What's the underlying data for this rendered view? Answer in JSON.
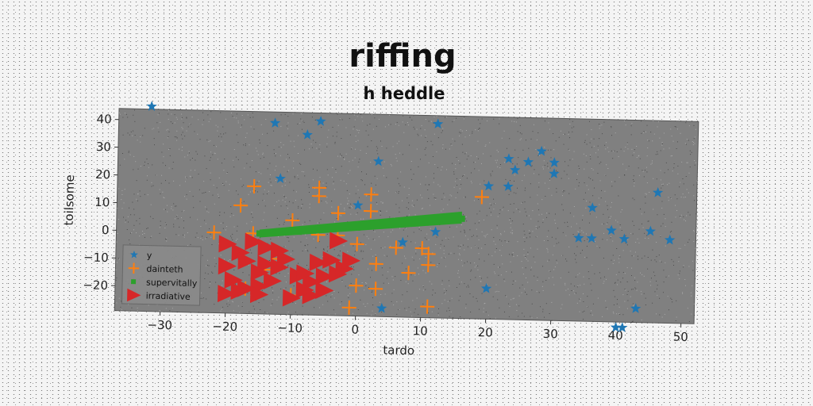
{
  "chart_data": {
    "type": "scatter",
    "title": "riffing",
    "subtitle": "h heddle",
    "xlabel": "tardo",
    "ylabel": "toilsome",
    "xlim": [
      -37,
      52
    ],
    "ylim": [
      -29,
      44
    ],
    "xticks": [
      -30,
      -20,
      -10,
      0,
      10,
      20,
      30,
      40,
      50
    ],
    "yticks": [
      -20,
      -10,
      0,
      10,
      20,
      30,
      40
    ],
    "xtick_labels": [
      "−30",
      "−20",
      "−10",
      "0",
      "10",
      "20",
      "30",
      "40",
      "50"
    ],
    "ytick_labels": [
      "−20",
      "−10",
      "0",
      "10",
      "20",
      "30",
      "40"
    ],
    "grid": false,
    "legend_position": "lower-left",
    "background": "#808080",
    "series": [
      {
        "name": "y",
        "marker": "star",
        "color": "#1f77b4",
        "points": [
          [
            -32,
            45
          ],
          [
            -13,
            40
          ],
          [
            -6,
            41
          ],
          [
            -8,
            36
          ],
          [
            12,
            41
          ],
          [
            3,
            27
          ],
          [
            -12,
            20
          ],
          [
            0,
            11
          ],
          [
            12,
            2
          ],
          [
            7,
            -2
          ],
          [
            20,
            -18
          ],
          [
            4,
            -26
          ],
          [
            20,
            19
          ],
          [
            23,
            29
          ],
          [
            24,
            25
          ],
          [
            26,
            28
          ],
          [
            28,
            32
          ],
          [
            30,
            28
          ],
          [
            30,
            24
          ],
          [
            23,
            19
          ],
          [
            36,
            12
          ],
          [
            46,
            18
          ],
          [
            34,
            1
          ],
          [
            36,
            1
          ],
          [
            39,
            4
          ],
          [
            41,
            1
          ],
          [
            45,
            4
          ],
          [
            48,
            1
          ],
          [
            43,
            -24
          ],
          [
            40,
            -31
          ],
          [
            41,
            -31
          ]
        ]
      },
      {
        "name": "dainteth",
        "marker": "plus",
        "color": "#ff7f0e",
        "points": [
          [
            -16,
            17
          ],
          [
            -18,
            10
          ],
          [
            -6,
            17
          ],
          [
            -6,
            14
          ],
          [
            2,
            15
          ],
          [
            2,
            9
          ],
          [
            -3,
            8
          ],
          [
            -10,
            5
          ],
          [
            -22,
            0
          ],
          [
            -16,
            0
          ],
          [
            -6,
            0
          ],
          [
            0,
            -3
          ],
          [
            -3,
            0
          ],
          [
            6,
            -4
          ],
          [
            10,
            -4
          ],
          [
            11,
            -6
          ],
          [
            3,
            -10
          ],
          [
            8,
            -13
          ],
          [
            11,
            -10
          ],
          [
            -14,
            -13
          ],
          [
            -17,
            -20
          ],
          [
            -10,
            -22
          ],
          [
            0,
            -18
          ],
          [
            3,
            -19
          ],
          [
            -1,
            -26
          ],
          [
            11,
            -25
          ],
          [
            19,
            15
          ],
          [
            -12,
            -9
          ]
        ]
      },
      {
        "name": "supervitally",
        "marker": "square",
        "color": "#2ca02c",
        "band": true,
        "from": [
          -15,
          0
        ],
        "to": [
          16,
          7
        ],
        "points": [
          [
            -15,
            0
          ],
          [
            -12,
            1
          ],
          [
            -9,
            1
          ],
          [
            -6,
            2
          ],
          [
            -3,
            3
          ],
          [
            0,
            3
          ],
          [
            3,
            4
          ],
          [
            6,
            5
          ],
          [
            9,
            5
          ],
          [
            12,
            6
          ],
          [
            16,
            7
          ]
        ]
      },
      {
        "name": "irradiative",
        "marker": "triangle-right",
        "color": "#d62728",
        "points": [
          [
            -20,
            -4
          ],
          [
            -18,
            -7
          ],
          [
            -16,
            -3
          ],
          [
            -14,
            -5
          ],
          [
            -12,
            -6
          ],
          [
            -17,
            -10
          ],
          [
            -14,
            -11
          ],
          [
            -11,
            -9
          ],
          [
            -20,
            -12
          ],
          [
            -19,
            -17
          ],
          [
            -17,
            -20
          ],
          [
            -15,
            -19
          ],
          [
            -13,
            -17
          ],
          [
            -20,
            -22
          ],
          [
            -18,
            -21
          ],
          [
            -15,
            -22
          ],
          [
            -9,
            -15
          ],
          [
            -7,
            -17
          ],
          [
            -5,
            -15
          ],
          [
            -3,
            -14
          ],
          [
            -6,
            -10
          ],
          [
            -4,
            -9
          ],
          [
            -2,
            -12
          ],
          [
            -7,
            -22
          ],
          [
            -5,
            -20
          ],
          [
            -8,
            -20
          ],
          [
            -10,
            -23
          ],
          [
            -3,
            -2
          ],
          [
            -1,
            -9
          ],
          [
            -12,
            -12
          ],
          [
            -15,
            -14
          ],
          [
            -8,
            -14
          ]
        ]
      }
    ]
  }
}
